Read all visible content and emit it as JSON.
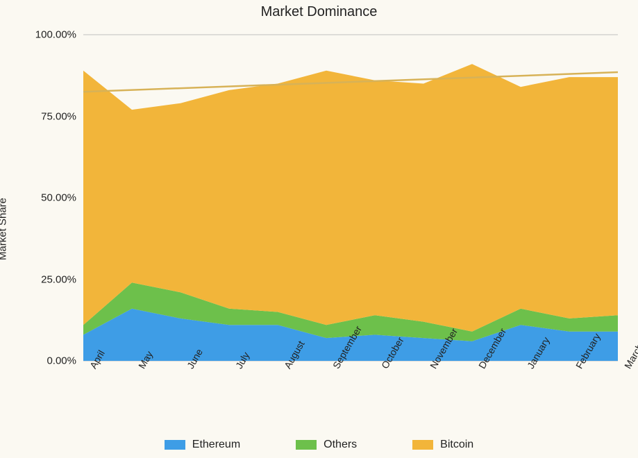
{
  "chart": {
    "type": "stacked-area",
    "title": "Market Dominance",
    "ylabel": "Market Share",
    "background_color": "#fbf9f2",
    "title_fontsize": 20,
    "label_fontsize": 15,
    "tick_fontsize": 15,
    "legend_fontsize": 16,
    "ylim": [
      0,
      100
    ],
    "yticks": [
      0,
      25,
      50,
      75,
      100
    ],
    "ytick_labels": [
      "0.00%",
      "25.00%",
      "50.00%",
      "75.00%",
      "100.00%"
    ],
    "grid_color": "#bfbfbf",
    "grid_width": 1,
    "categories": [
      "April",
      "May",
      "June",
      "July",
      "August",
      "September",
      "October",
      "November",
      "December",
      "January",
      "February",
      "March"
    ],
    "series": [
      {
        "name": "Ethereum",
        "color": "#3e9de6",
        "values": [
          8.0,
          16.0,
          13.0,
          11.0,
          11.0,
          7.0,
          8.0,
          7.0,
          6.0,
          11.0,
          9.0,
          9.0
        ]
      },
      {
        "name": "Others",
        "color": "#6dc04b",
        "values": [
          3.0,
          8.0,
          8.0,
          5.0,
          4.0,
          4.0,
          6.0,
          5.0,
          3.0,
          5.0,
          4.0,
          5.0
        ]
      },
      {
        "name": "Bitcoin",
        "color": "#f2b53a",
        "values": [
          78.0,
          53.0,
          58.0,
          67.0,
          70.0,
          78.0,
          72.0,
          73.0,
          82.0,
          68.0,
          74.0,
          73.0
        ]
      }
    ],
    "trend_line": {
      "color": "#d7b257",
      "width": 2.5,
      "y_start": 82.5,
      "y_end": 88.5
    },
    "legend_order": [
      "Ethereum",
      "Others",
      "Bitcoin"
    ]
  }
}
